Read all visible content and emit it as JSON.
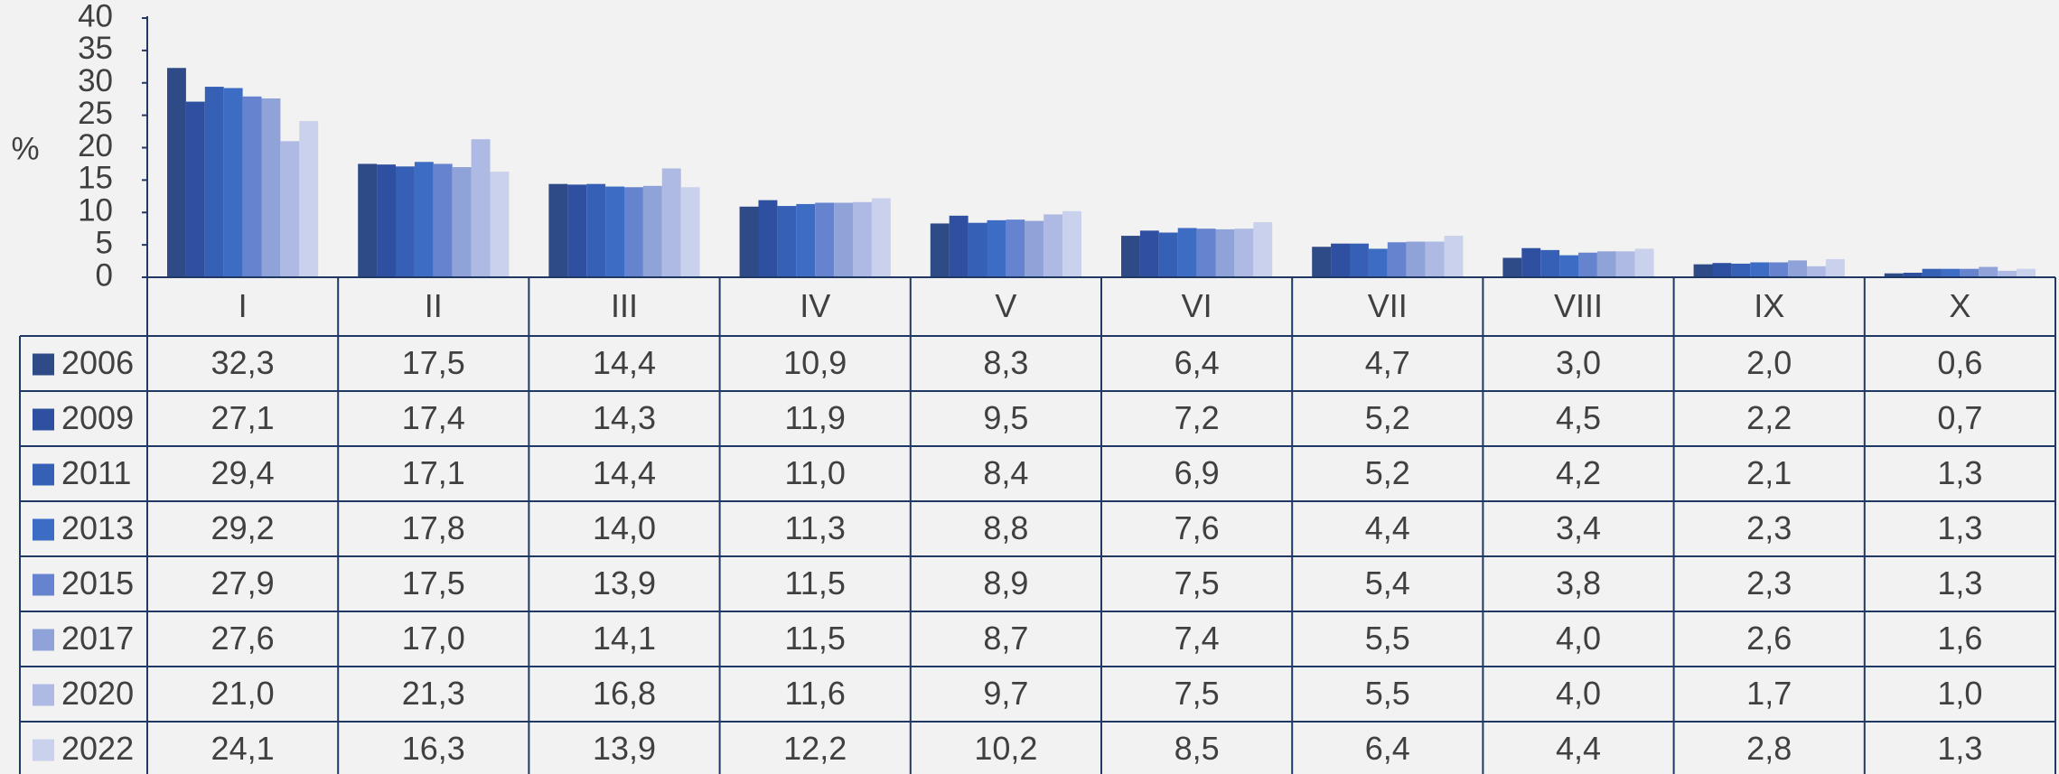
{
  "chart_data": {
    "type": "bar",
    "y_label": "%",
    "categories": [
      "I",
      "II",
      "III",
      "IV",
      "V",
      "VI",
      "VII",
      "VIII",
      "IX",
      "X"
    ],
    "ylim": [
      0,
      40
    ],
    "yticks": [
      0,
      5,
      10,
      15,
      20,
      25,
      30,
      35,
      40
    ],
    "series": [
      {
        "name": "2006",
        "color": "#2e4a87",
        "values": [
          32.3,
          17.5,
          14.4,
          10.9,
          8.3,
          6.4,
          4.7,
          3.0,
          2.0,
          0.6
        ],
        "value_labels": [
          "32,3",
          "17,5",
          "14,4",
          "10,9",
          "8,3",
          "6,4",
          "4,7",
          "3,0",
          "2,0",
          "0,6"
        ]
      },
      {
        "name": "2009",
        "color": "#2f4fa0",
        "values": [
          27.1,
          17.4,
          14.3,
          11.9,
          9.5,
          7.2,
          5.2,
          4.5,
          2.2,
          0.7
        ],
        "value_labels": [
          "27,1",
          "17,4",
          "14,3",
          "11,9",
          "9,5",
          "7,2",
          "5,2",
          "4,5",
          "2,2",
          "0,7"
        ]
      },
      {
        "name": "2011",
        "color": "#3560b5",
        "values": [
          29.4,
          17.1,
          14.4,
          11.0,
          8.4,
          6.9,
          5.2,
          4.2,
          2.1,
          1.3
        ],
        "value_labels": [
          "29,4",
          "17,1",
          "14,4",
          "11,0",
          "8,4",
          "6,9",
          "5,2",
          "4,2",
          "2,1",
          "1,3"
        ]
      },
      {
        "name": "2013",
        "color": "#3c6cc4",
        "values": [
          29.2,
          17.8,
          14.0,
          11.3,
          8.8,
          7.6,
          4.4,
          3.4,
          2.3,
          1.3
        ],
        "value_labels": [
          "29,2",
          "17,8",
          "14,0",
          "11,3",
          "8,8",
          "7,6",
          "4,4",
          "3,4",
          "2,3",
          "1,3"
        ]
      },
      {
        "name": "2015",
        "color": "#6683cf",
        "values": [
          27.9,
          17.5,
          13.9,
          11.5,
          8.9,
          7.5,
          5.4,
          3.8,
          2.3,
          1.3
        ],
        "value_labels": [
          "27,9",
          "17,5",
          "13,9",
          "11,5",
          "8,9",
          "7,5",
          "5,4",
          "3,8",
          "2,3",
          "1,3"
        ]
      },
      {
        "name": "2017",
        "color": "#8fa3d9",
        "values": [
          27.6,
          17.0,
          14.1,
          11.5,
          8.7,
          7.4,
          5.5,
          4.0,
          2.6,
          1.6
        ],
        "value_labels": [
          "27,6",
          "17,0",
          "14,1",
          "11,5",
          "8,7",
          "7,4",
          "5,5",
          "4,0",
          "2,6",
          "1,6"
        ]
      },
      {
        "name": "2020",
        "color": "#aebae3",
        "values": [
          21.0,
          21.3,
          16.8,
          11.6,
          9.7,
          7.5,
          5.5,
          4.0,
          1.7,
          1.0
        ],
        "value_labels": [
          "21,0",
          "21,3",
          "16,8",
          "11,6",
          "9,7",
          "7,5",
          "5,5",
          "4,0",
          "1,7",
          "1,0"
        ]
      },
      {
        "name": "2022",
        "color": "#c9d1ec",
        "values": [
          24.1,
          16.3,
          13.9,
          12.2,
          10.2,
          8.5,
          6.4,
          4.4,
          2.8,
          1.3
        ],
        "value_labels": [
          "24,1",
          "16,3",
          "13,9",
          "12,2",
          "10,2",
          "8,5",
          "6,4",
          "4,4",
          "2,8",
          "1,3"
        ]
      }
    ]
  }
}
